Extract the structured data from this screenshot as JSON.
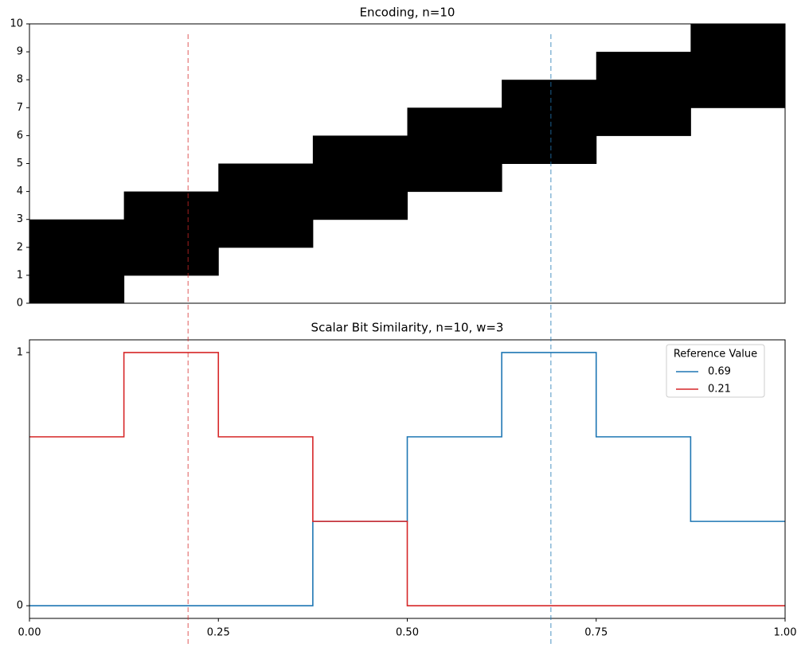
{
  "chart_data": [
    {
      "type": "heatmap",
      "title": "Encoding, n=10",
      "x_edges": [
        0,
        0.125,
        0.25,
        0.375,
        0.5,
        0.625,
        0.75,
        0.875,
        1
      ],
      "z": [
        [
          1,
          0,
          0,
          0,
          0,
          0,
          0,
          0
        ],
        [
          1,
          1,
          0,
          0,
          0,
          0,
          0,
          0
        ],
        [
          1,
          1,
          1,
          0,
          0,
          0,
          0,
          0
        ],
        [
          0,
          1,
          1,
          1,
          0,
          0,
          0,
          0
        ],
        [
          0,
          0,
          1,
          1,
          1,
          0,
          0,
          0
        ],
        [
          0,
          0,
          0,
          1,
          1,
          1,
          0,
          0
        ],
        [
          0,
          0,
          0,
          0,
          1,
          1,
          1,
          0
        ],
        [
          0,
          0,
          0,
          0,
          0,
          1,
          1,
          1
        ],
        [
          0,
          0,
          0,
          0,
          0,
          0,
          1,
          1
        ],
        [
          0,
          0,
          0,
          0,
          0,
          0,
          0,
          1
        ]
      ],
      "color": "#000000",
      "xlim": [
        0,
        1
      ],
      "ylim": [
        0,
        10
      ],
      "yticks": [
        0,
        1,
        2,
        3,
        4,
        5,
        6,
        7,
        8,
        9,
        10
      ]
    },
    {
      "type": "line",
      "title": "Scalar Bit Similarity, n=10, w=3",
      "x": [
        0,
        0.125,
        0.125,
        0.25,
        0.25,
        0.375,
        0.375,
        0.5,
        0.5,
        0.625,
        0.625,
        0.75,
        0.75,
        0.875,
        0.875,
        1
      ],
      "series": [
        {
          "name": "0.69",
          "color": "#1f77b4",
          "values": [
            0,
            0,
            0,
            0,
            0,
            0,
            0.333,
            0.333,
            0.667,
            0.667,
            1,
            1,
            0.667,
            0.667,
            0.333,
            0.333
          ]
        },
        {
          "name": "0.21",
          "color": "#d62728",
          "values": [
            0.667,
            0.667,
            1,
            1,
            0.667,
            0.667,
            0.333,
            0.333,
            0,
            0,
            0,
            0,
            0,
            0,
            0,
            0
          ]
        }
      ],
      "legend_title": "Reference Value",
      "legend": "upper right",
      "xlim": [
        0,
        1
      ],
      "ylim": [
        -0.05,
        1.05
      ],
      "xticks": [
        {
          "value": 0,
          "label": "0.00"
        },
        {
          "value": 0.25,
          "label": "0.25"
        },
        {
          "value": 0.5,
          "label": "0.50"
        },
        {
          "value": 0.75,
          "label": "0.75"
        },
        {
          "value": 1,
          "label": "1.00"
        }
      ],
      "yticks": [
        0,
        1
      ]
    }
  ]
}
